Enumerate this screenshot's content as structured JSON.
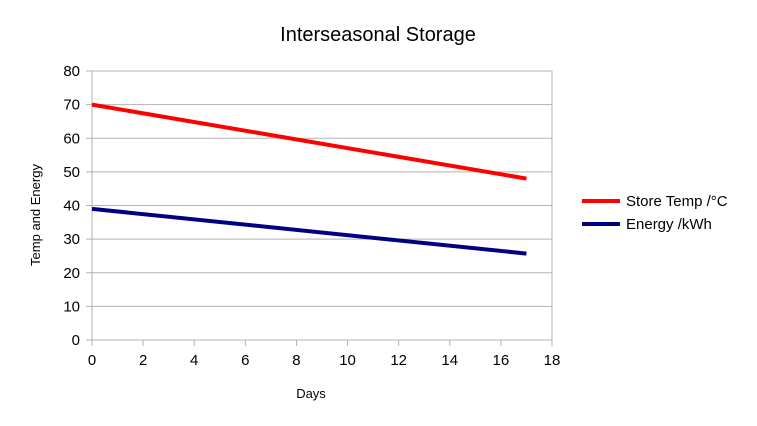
{
  "chart_data": {
    "type": "line",
    "title": "Interseasonal Storage",
    "xlabel": "Days",
    "ylabel": "Temp and Energy",
    "xlim": [
      0,
      18
    ],
    "ylim": [
      0,
      80
    ],
    "xticks": [
      0,
      2,
      4,
      6,
      8,
      10,
      12,
      14,
      16,
      18
    ],
    "yticks": [
      0,
      10,
      20,
      30,
      40,
      50,
      60,
      70,
      80
    ],
    "grid": true,
    "legend_position": "right",
    "series": [
      {
        "name": "Store Temp /°C",
        "color": "#ff0000",
        "x": [
          0,
          17
        ],
        "y": [
          70,
          48
        ]
      },
      {
        "name": "Energy /kWh",
        "color": "#000080",
        "x": [
          0,
          17
        ],
        "y": [
          39,
          25.7
        ]
      }
    ]
  }
}
